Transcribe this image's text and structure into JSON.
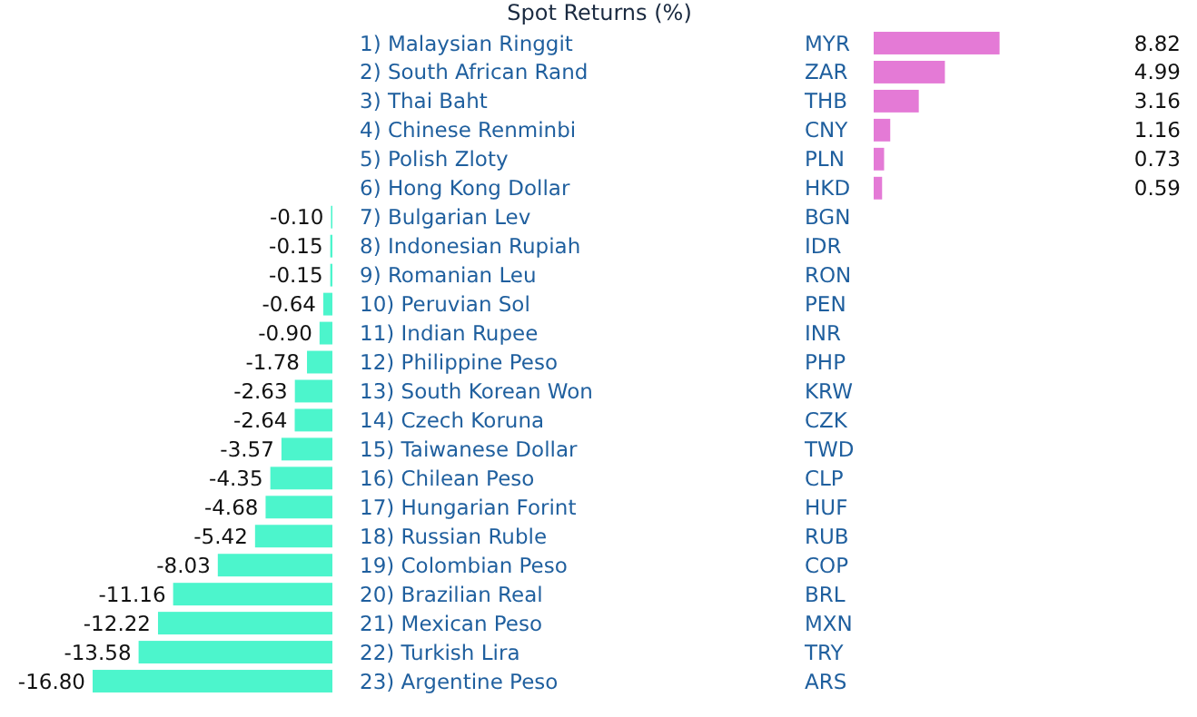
{
  "chart_data": [
    {
      "type": "bar",
      "orientation": "horizontal",
      "title": "Spot Returns (%)",
      "categories": [
        "1) Malaysian Ringgit",
        "2) South African Rand",
        "3) Thai Baht",
        "4) Chinese Renminbi",
        "5) Polish Zloty",
        "6) Hong Kong Dollar",
        "7) Bulgarian Lev",
        "8) Indonesian Rupiah",
        "9) Romanian Leu",
        "10) Peruvian Sol",
        "11) Indian Rupee",
        "12) Philippine Peso",
        "13) South Korean Won",
        "14) Czech Koruna",
        "15) Taiwanese Dollar",
        "16) Chilean Peso",
        "17) Hungarian Forint",
        "18) Russian Ruble",
        "19) Colombian Peso",
        "20) Brazilian Real",
        "21) Mexican Peso",
        "22) Turkish Lira",
        "23) Argentine Peso"
      ],
      "values": [
        null,
        null,
        null,
        null,
        null,
        null,
        -0.1,
        -0.15,
        -0.15,
        -0.64,
        -0.9,
        -1.78,
        -2.63,
        -2.64,
        -3.57,
        -4.35,
        -4.68,
        -5.42,
        -8.03,
        -11.16,
        -12.22,
        -13.58,
        -16.8
      ],
      "value_labels": [
        null,
        null,
        null,
        null,
        null,
        null,
        "-0.10",
        "-0.15",
        "-0.15",
        "-0.64",
        "-0.90",
        "-1.78",
        "-2.63",
        "-2.64",
        "-3.57",
        "-4.35",
        "-4.68",
        "-5.42",
        "-8.03",
        "-11.16",
        "-12.22",
        "-13.58",
        "-16.80"
      ],
      "color": "#4cf5cc"
    },
    {
      "type": "bar",
      "orientation": "horizontal",
      "categories": [
        "MYR",
        "ZAR",
        "THB",
        "CNY",
        "PLN",
        "HKD",
        "BGN",
        "IDR",
        "RON",
        "PEN",
        "INR",
        "PHP",
        "KRW",
        "CZK",
        "TWD",
        "CLP",
        "HUF",
        "RUB",
        "COP",
        "BRL",
        "MXN",
        "TRY",
        "ARS"
      ],
      "values": [
        8.82,
        4.99,
        3.16,
        1.16,
        0.73,
        0.59,
        null,
        null,
        null,
        null,
        null,
        null,
        null,
        null,
        null,
        null,
        null,
        null,
        null,
        null,
        null,
        null,
        null
      ],
      "value_labels": [
        "8.82",
        "4.99",
        "3.16",
        "1.16",
        "0.73",
        "0.59",
        null,
        null,
        null,
        null,
        null,
        null,
        null,
        null,
        null,
        null,
        null,
        null,
        null,
        null,
        null,
        null,
        null
      ],
      "color": "#e47ad6"
    }
  ]
}
